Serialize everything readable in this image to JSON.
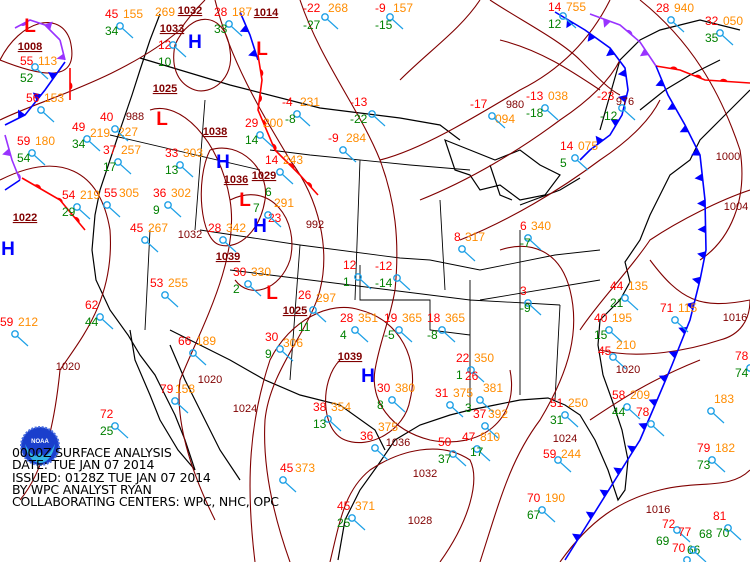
{
  "caption": {
    "line1": "0000Z SURFACE ANALYSIS",
    "line2": "DATE: TUE JAN 07 2014",
    "line3": "ISSUED: 0128Z TUE JAN 07 2014",
    "line4": "BY WPC ANALYST RYAN",
    "line5": "COLLABORATING CENTERS: WPC, NHC, OPC"
  },
  "logo": {
    "name": "noaa-logo",
    "text": "NOAA"
  },
  "colors": {
    "isobar": "#800000",
    "temperature": "#ff0000",
    "dewpoint": "#008000",
    "pressure": "#ff8c00",
    "station": "#1ea0e6",
    "cold_front": "#0000ff",
    "warm_front": "#ff0000",
    "occluded_front": "#9933ff",
    "high": "#0000ff",
    "low": "#ff0000"
  },
  "centers": [
    {
      "type": "L",
      "pressure": "1008"
    },
    {
      "type": "H",
      "pressure": "1032"
    },
    {
      "type": "L",
      "pressure": "1025"
    },
    {
      "type": "H",
      "pressure": "1036"
    },
    {
      "type": "L",
      "pressure": "1029"
    },
    {
      "type": "H",
      "pressure": "1039"
    },
    {
      "type": "L",
      "pressure": "1025"
    },
    {
      "type": "H",
      "pressure": "1039"
    },
    {
      "type": "H",
      "pressure": ""
    },
    {
      "type": "L",
      "pressure": "1014"
    }
  ],
  "isobar_labels": [
    "1033",
    "1038",
    "1022",
    "1020",
    "1020",
    "1024",
    "1024",
    "1028",
    "1032",
    "1036",
    "1020",
    "1016",
    "1016",
    "1000",
    "1004",
    "988",
    "992",
    "980",
    "976",
    "1032"
  ],
  "stations": [
    {
      "t": "45",
      "p": "155",
      "td": "34"
    },
    {
      "t": "12",
      "p": "269",
      "td": "10"
    },
    {
      "t": "28",
      "p": "187",
      "td": "33"
    },
    {
      "t": "56",
      "p": "153",
      "td": ""
    },
    {
      "t": "55",
      "p": "113",
      "td": "52"
    },
    {
      "t": "40",
      "p": "227",
      "td": ""
    },
    {
      "t": "49",
      "p": "219",
      "td": "34"
    },
    {
      "t": "59",
      "p": "180",
      "td": "54"
    },
    {
      "t": "37",
      "p": "257",
      "td": "17"
    },
    {
      "t": "54",
      "p": "219",
      "td": "29"
    },
    {
      "t": "55",
      "p": "305",
      "td": ""
    },
    {
      "t": "33",
      "p": "303",
      "td": "13"
    },
    {
      "t": "36",
      "p": "302",
      "td": "9"
    },
    {
      "t": "45",
      "p": "267",
      "td": ""
    },
    {
      "t": "28",
      "p": "342",
      "td": ""
    },
    {
      "t": "29",
      "p": "200",
      "td": "14"
    },
    {
      "t": "14",
      "p": "243",
      "td": "6"
    },
    {
      "t": "23",
      "p": "291",
      "td": "7"
    },
    {
      "t": "-4",
      "p": "231",
      "td": "-8"
    },
    {
      "t": "30",
      "p": "330",
      "td": "2"
    },
    {
      "t": "26",
      "p": "297",
      "td": "11"
    },
    {
      "t": "12",
      "p": "",
      "td": "1"
    },
    {
      "t": "28",
      "p": "351",
      "td": "4"
    },
    {
      "t": "19",
      "p": "365",
      "td": "-5"
    },
    {
      "t": "18",
      "p": "365",
      "td": "-8"
    },
    {
      "t": "30",
      "p": "306",
      "td": "9"
    },
    {
      "t": "30",
      "p": "380",
      "td": "8"
    },
    {
      "t": "38",
      "p": "354",
      "td": "13"
    },
    {
      "t": "36",
      "p": "375",
      "td": ""
    },
    {
      "t": "31",
      "p": "375",
      "td": ""
    },
    {
      "t": "-13",
      "p": "038",
      "td": "-18"
    },
    {
      "t": "14",
      "p": "075",
      "td": "5"
    },
    {
      "t": "-23",
      "p": "",
      "td": "-12"
    },
    {
      "t": "44",
      "p": "135",
      "td": "21"
    },
    {
      "t": "40",
      "p": "195",
      "td": "15"
    },
    {
      "t": "45",
      "p": "210",
      "td": ""
    },
    {
      "t": "58",
      "p": "209",
      "td": "44"
    },
    {
      "t": "51",
      "p": "250",
      "td": "31"
    },
    {
      "t": "59",
      "p": "244",
      "td": ""
    },
    {
      "t": "70",
      "p": "190",
      "td": "67"
    },
    {
      "t": "78",
      "p": "",
      "td": ""
    },
    {
      "t": "72",
      "p": "",
      "td": "25"
    },
    {
      "t": "45",
      "p": "373",
      "td": ""
    },
    {
      "t": "45",
      "p": "371",
      "td": "25"
    },
    {
      "t": "50",
      "p": "",
      "td": "37"
    },
    {
      "t": "47",
      "p": "810",
      "td": ""
    },
    {
      "t": "62",
      "p": "",
      "td": "44"
    },
    {
      "t": "66",
      "p": "189",
      "td": ""
    },
    {
      "t": "79",
      "p": "158",
      "td": ""
    },
    {
      "t": "53",
      "p": "255",
      "td": ""
    },
    {
      "t": "-9",
      "p": "284",
      "td": ""
    },
    {
      "t": "-13",
      "p": "",
      "td": "-22"
    },
    {
      "t": "-17",
      "p": "094",
      "td": ""
    },
    {
      "t": "32",
      "p": "050",
      "td": "35"
    },
    {
      "t": "28",
      "p": "940",
      "td": ""
    },
    {
      "t": "14",
      "p": "755",
      "td": "12"
    },
    {
      "t": "-22",
      "p": "268",
      "td": "-27"
    },
    {
      "t": "-9",
      "p": "157",
      "td": "-15"
    },
    {
      "t": "71",
      "p": "115",
      "td": ""
    },
    {
      "t": "78",
      "p": "",
      "td": "74"
    },
    {
      "t": "",
      "p": "183",
      "td": ""
    },
    {
      "t": "59",
      "p": "212",
      "td": ""
    },
    {
      "t": "70",
      "p": "",
      "td": "66"
    },
    {
      "t": "72",
      "p": "",
      "td": "69"
    },
    {
      "t": "77",
      "p": "",
      "td": "68"
    },
    {
      "t": "79",
      "p": "182",
      "td": "73"
    },
    {
      "t": "81",
      "p": "",
      "td": "70"
    },
    {
      "t": "-12",
      "p": "",
      "td": "-14"
    },
    {
      "t": "3",
      "p": "",
      "td": "-9"
    },
    {
      "t": "8",
      "p": "317",
      "td": ""
    },
    {
      "t": "6",
      "p": "340",
      "td": "-7"
    },
    {
      "t": "22",
      "p": "350",
      "td": "1"
    },
    {
      "t": "26",
      "p": "381",
      "td": "3"
    },
    {
      "t": "37",
      "p": "392",
      "td": "17"
    }
  ]
}
